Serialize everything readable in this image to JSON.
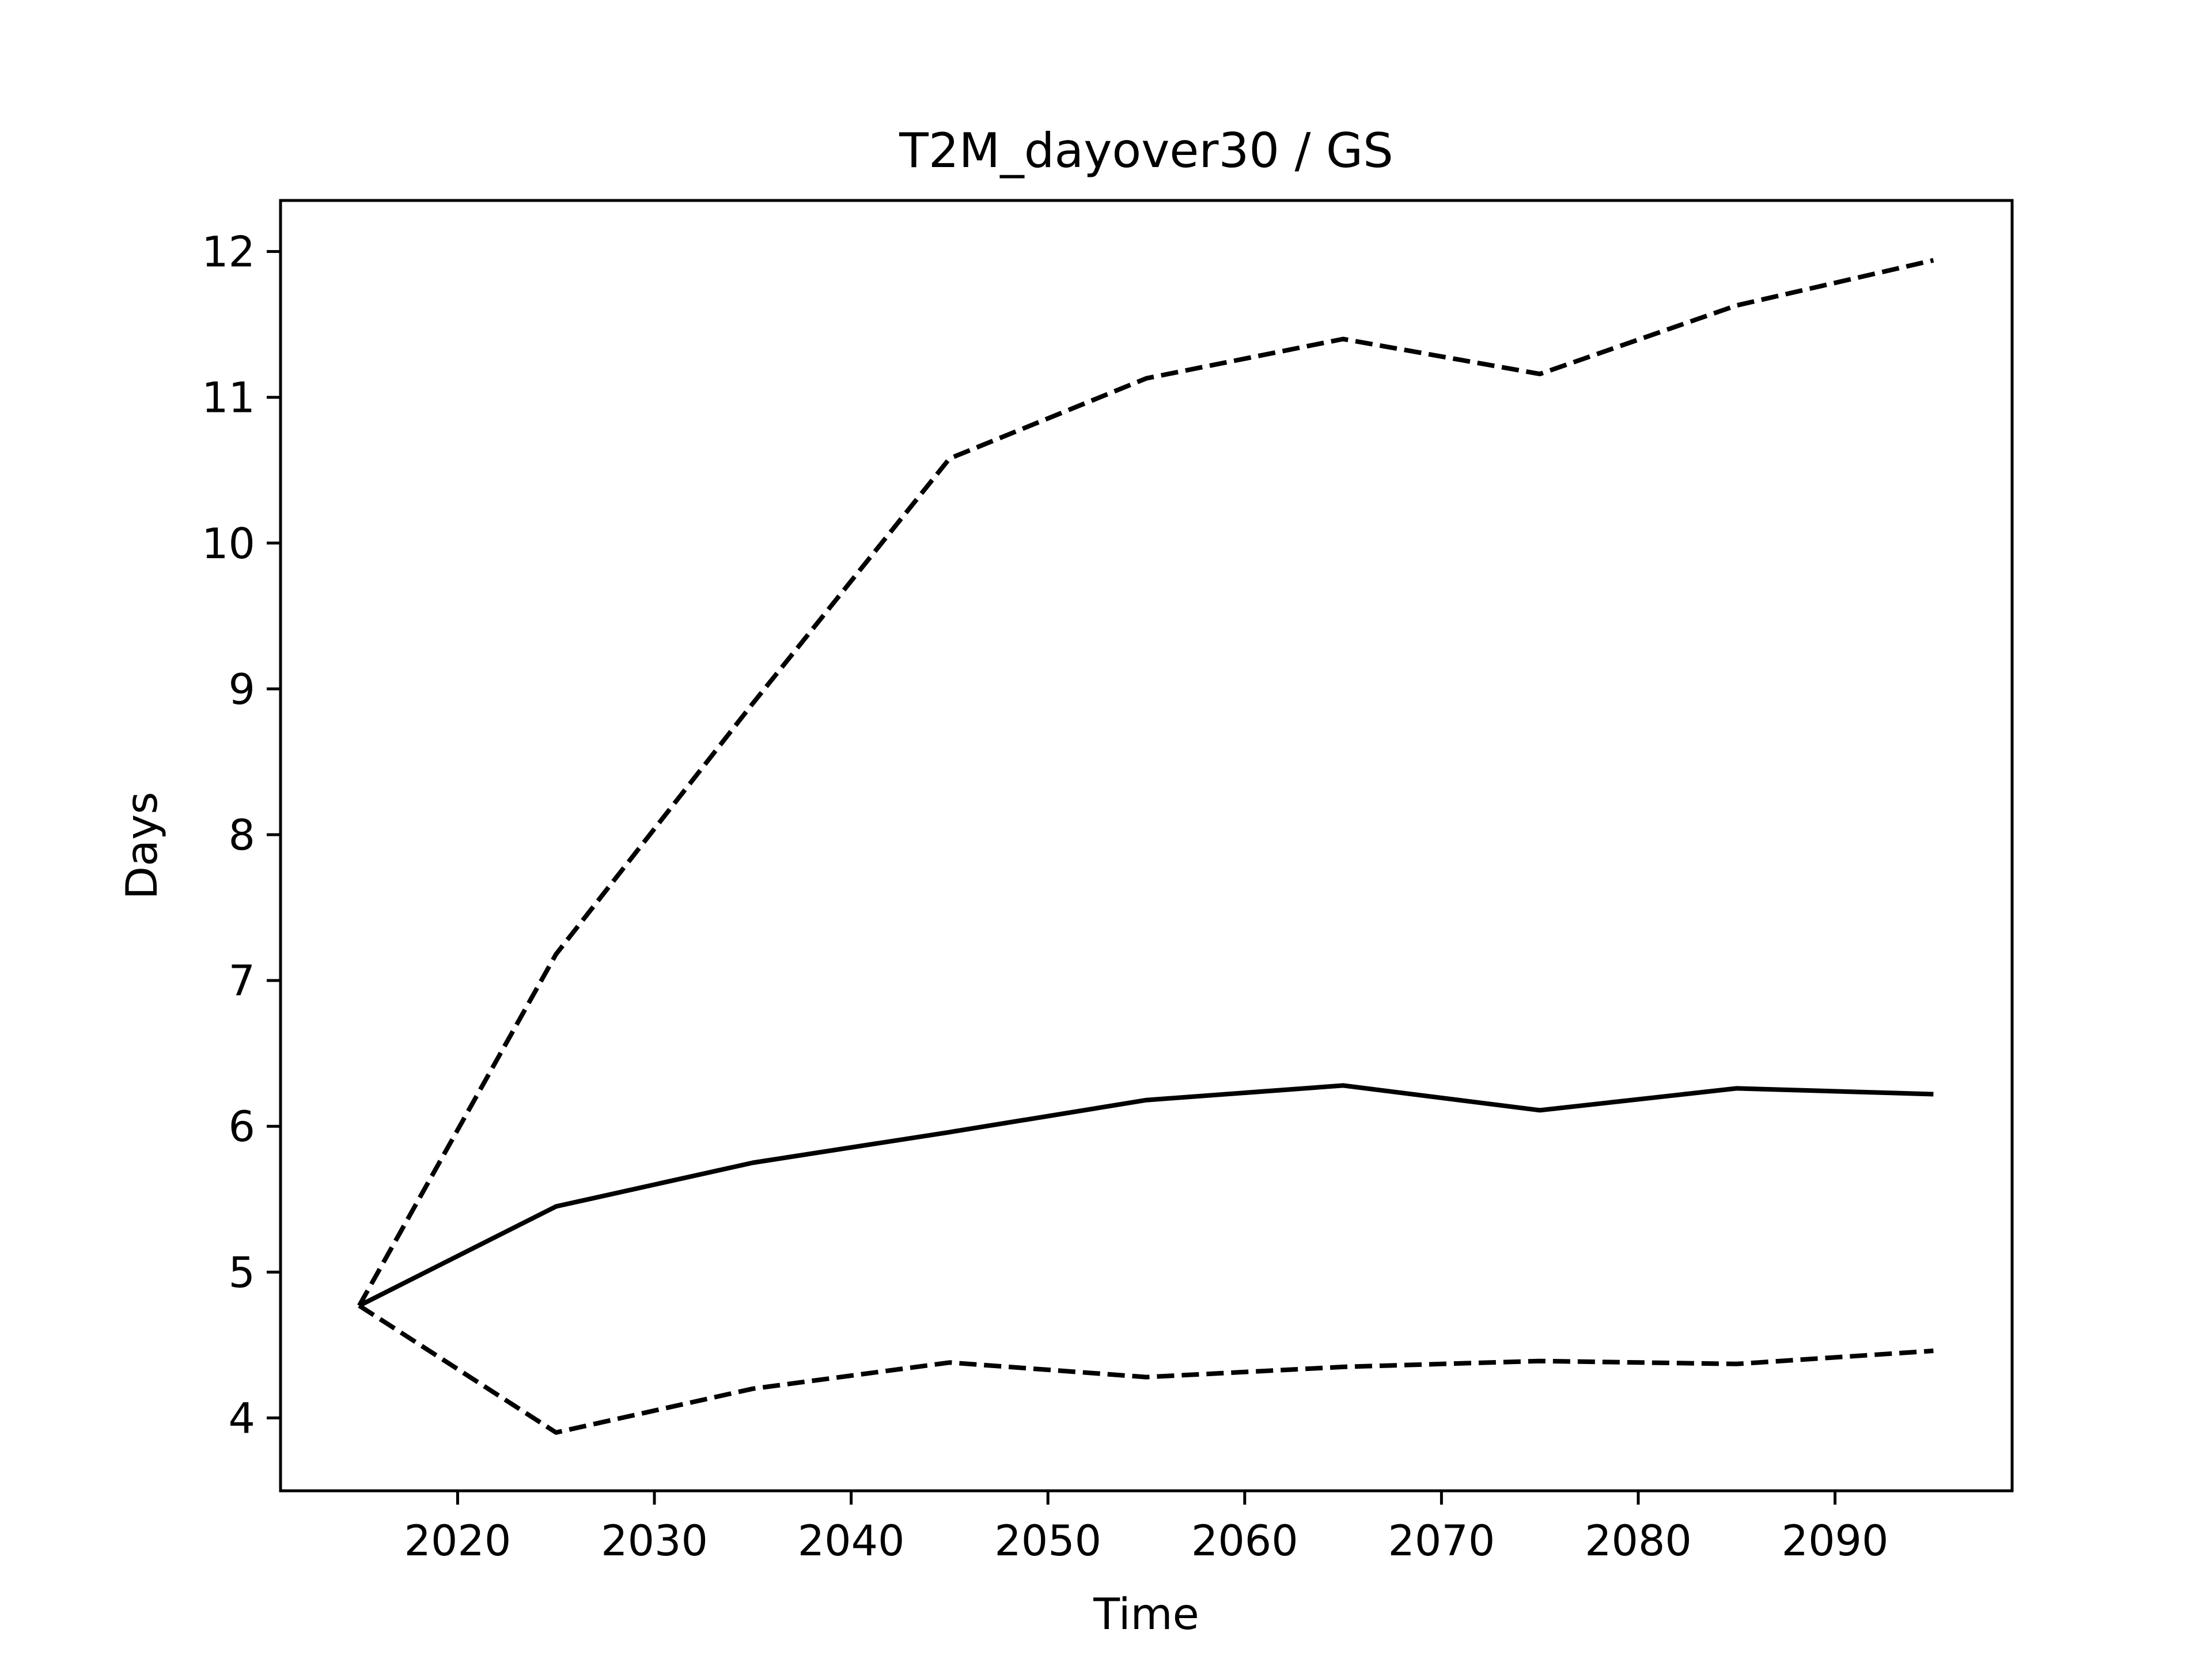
{
  "chart_data": {
    "type": "line",
    "title": "T2M_dayover30 / GS",
    "xlabel": "Time",
    "ylabel": "Days",
    "xlim": [
      2011,
      2099
    ],
    "ylim": [
      3.5,
      12.35
    ],
    "xticks": [
      2020,
      2030,
      2040,
      2050,
      2060,
      2070,
      2080,
      2090
    ],
    "yticks": [
      4,
      5,
      6,
      7,
      8,
      9,
      10,
      11,
      12
    ],
    "grid": false,
    "legend": "none",
    "line_color": "#000000",
    "x": [
      2015,
      2025,
      2035,
      2045,
      2055,
      2065,
      2075,
      2085,
      2095
    ],
    "series": [
      {
        "style": "dashed",
        "values": [
          4.77,
          7.18,
          8.9,
          10.58,
          11.13,
          11.4,
          11.16,
          11.63,
          11.94
        ]
      },
      {
        "style": "solid",
        "values": [
          4.77,
          5.45,
          5.75,
          5.96,
          6.18,
          6.28,
          6.11,
          6.26,
          6.22
        ]
      },
      {
        "style": "dashed",
        "values": [
          4.77,
          3.9,
          4.2,
          4.38,
          4.28,
          4.35,
          4.39,
          4.37,
          4.46
        ]
      }
    ]
  }
}
